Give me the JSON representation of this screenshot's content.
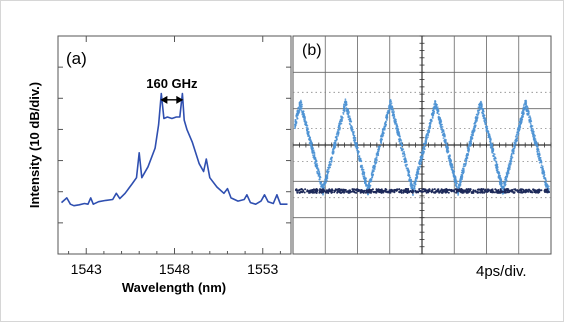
{
  "chart_data": [
    {
      "panel_label": "(a)",
      "type": "line",
      "xlabel": "Wavelength (nm)",
      "ylabel": "Intensity (10 dB/div.)",
      "xlim": [
        1541.4,
        1554.6
      ],
      "ylim": [
        0,
        7
      ],
      "xticks": [
        1543,
        1548,
        1553
      ],
      "annotation": "160 GHz",
      "annotation_span": [
        1547.2,
        1548.5
      ],
      "series": [
        {
          "color": "#2f4fb0",
          "x": [
            1541.6,
            1541.9,
            1542.1,
            1542.3,
            1542.6,
            1542.9,
            1543.1,
            1543.25,
            1543.4,
            1543.7,
            1544.1,
            1544.5,
            1544.7,
            1544.9,
            1545.2,
            1545.6,
            1545.85,
            1546.0,
            1546.15,
            1546.5,
            1546.9,
            1547.1,
            1547.25,
            1547.4,
            1547.6,
            1547.85,
            1548.1,
            1548.3,
            1548.45,
            1548.55,
            1548.7,
            1549.0,
            1549.4,
            1549.65,
            1549.8,
            1550.0,
            1550.4,
            1550.8,
            1551.0,
            1551.2,
            1551.6,
            1551.95,
            1552.1,
            1552.3,
            1552.6,
            1552.9,
            1553.1,
            1553.3,
            1553.6,
            1553.8,
            1554.0,
            1554.4
          ],
          "y": [
            1.65,
            1.8,
            1.6,
            1.55,
            1.58,
            1.62,
            1.6,
            1.8,
            1.6,
            1.68,
            1.72,
            1.75,
            1.95,
            1.78,
            1.95,
            2.25,
            2.45,
            3.25,
            2.45,
            2.8,
            3.4,
            4.15,
            5.15,
            4.35,
            4.4,
            4.35,
            4.4,
            4.4,
            5.15,
            4.3,
            4.0,
            3.6,
            2.9,
            2.65,
            3.05,
            2.45,
            2.15,
            1.95,
            2.1,
            1.8,
            1.7,
            1.75,
            1.9,
            1.65,
            1.6,
            1.7,
            1.9,
            1.68,
            1.62,
            1.9,
            1.6,
            1.6
          ]
        }
      ]
    },
    {
      "panel_label": "(b)",
      "type": "scatter",
      "annotation": "4ps/div.",
      "colors": {
        "trace": "#4d93d4",
        "baseline": "#1e2a5a",
        "grid": "#666666"
      }
    }
  ]
}
